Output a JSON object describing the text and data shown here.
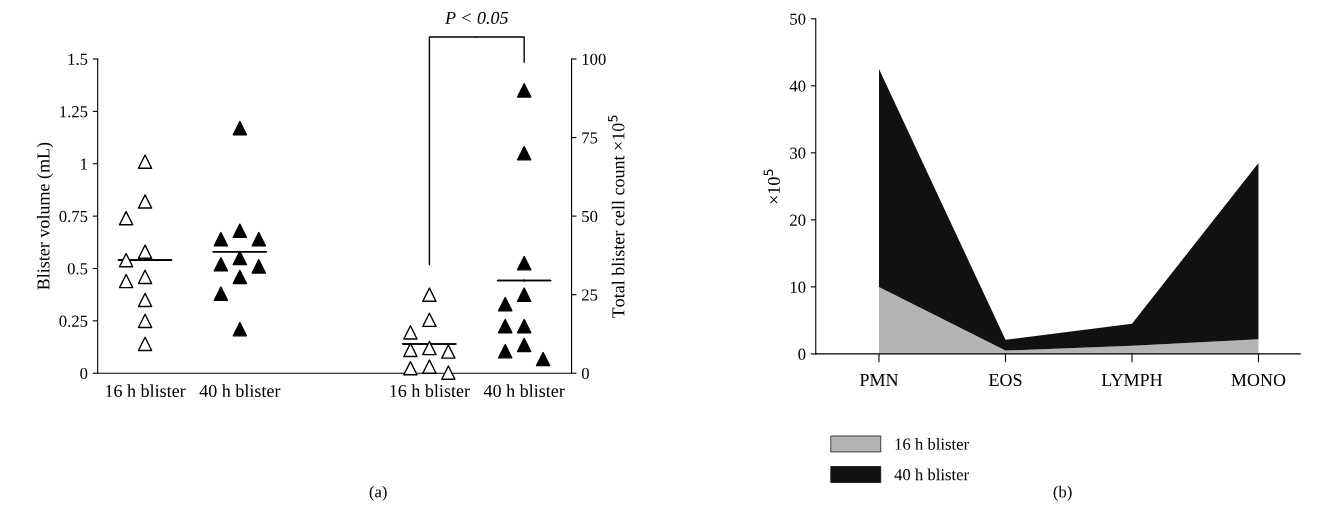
{
  "chart_data": [
    {
      "type": "scatter",
      "ylabel": "Blister volume (mL)",
      "y2label": "Total blister cell count ×10$^{5}$",
      "categories": [
        "16 h blister",
        "40 h blister",
        null,
        "16 h blister",
        "40 h blister"
      ],
      "ylim": [
        0,
        1.5
      ],
      "yticks": [
        0,
        0.25,
        0.5,
        0.75,
        1,
        1.25,
        1.5
      ],
      "y2lim": [
        0,
        100
      ],
      "y2ticks": [
        0,
        25,
        50,
        75,
        100
      ],
      "marker": "triangle",
      "series": [
        {
          "type": "scatter",
          "colors": [
            "#ffffff",
            "#000000",
            null,
            null,
            null
          ],
          "values": [
            1.01,
            1.17,
            null,
            null,
            null
          ]
        },
        {
          "type": "scatter",
          "colors": [
            "#ffffff",
            "#000000",
            null,
            null,
            null
          ],
          "values": [
            0.82,
            0.68,
            null,
            null,
            null
          ]
        },
        {
          "type": "scatter",
          "colors": [
            "#ffffff",
            "#000000",
            null,
            null,
            null
          ],
          "values": [
            0.74,
            0.64,
            null,
            null,
            null
          ]
        },
        {
          "type": "scatter",
          "colors": [
            "#ffffff",
            "#000000",
            null,
            null,
            null
          ],
          "values": [
            0.58,
            0.64,
            null,
            null,
            null
          ]
        },
        {
          "type": "scatter",
          "colors": [
            "#ffffff",
            "#000000",
            null,
            null,
            null
          ],
          "values": [
            0.54,
            0.55,
            null,
            null,
            null
          ]
        },
        {
          "type": "scatter",
          "colors": [
            "#ffffff",
            "#000000",
            null,
            null,
            null
          ],
          "values": [
            0.46,
            0.52,
            null,
            null,
            null
          ]
        },
        {
          "type": "scatter",
          "colors": [
            "#ffffff",
            "#000000",
            null,
            null,
            null
          ],
          "values": [
            0.44,
            0.51,
            null,
            null,
            null
          ]
        },
        {
          "type": "scatter",
          "colors": [
            "#ffffff",
            "#000000",
            null,
            null,
            null
          ],
          "values": [
            0.35,
            0.46,
            null,
            null,
            null
          ]
        },
        {
          "type": "scatter",
          "colors": [
            "#ffffff",
            "#000000",
            null,
            null,
            null
          ],
          "values": [
            0.25,
            0.38,
            null,
            null,
            null
          ]
        },
        {
          "type": "scatter",
          "colors": [
            "#ffffff",
            "#000000",
            null,
            null,
            null
          ],
          "values": [
            0.14,
            0.21,
            null,
            null,
            null
          ]
        },
        {
          "type": "scatter",
          "axis": "y2",
          "colors": [
            null,
            null,
            null,
            "#ffffff",
            "#000000"
          ],
          "values": [
            null,
            null,
            null,
            25,
            90
          ]
        },
        {
          "type": "scatter",
          "axis": "y2",
          "colors": [
            null,
            null,
            null,
            "#ffffff",
            "#000000"
          ],
          "values": [
            null,
            null,
            null,
            17,
            70
          ]
        },
        {
          "type": "scatter",
          "axis": "y2",
          "colors": [
            null,
            null,
            null,
            "#ffffff",
            "#000000"
          ],
          "values": [
            null,
            null,
            null,
            13,
            35
          ]
        },
        {
          "type": "scatter",
          "axis": "y2",
          "colors": [
            null,
            null,
            null,
            "#ffffff",
            "#000000"
          ],
          "values": [
            null,
            null,
            null,
            8,
            25
          ]
        },
        {
          "type": "scatter",
          "axis": "y2",
          "colors": [
            null,
            null,
            null,
            "#ffffff",
            "#000000"
          ],
          "values": [
            null,
            null,
            null,
            7.4,
            22
          ]
        },
        {
          "type": "scatter",
          "axis": "y2",
          "colors": [
            null,
            null,
            null,
            "#ffffff",
            "#000000"
          ],
          "values": [
            null,
            null,
            null,
            6.9,
            15
          ]
        },
        {
          "type": "scatter",
          "axis": "y2",
          "colors": [
            null,
            null,
            null,
            "#ffffff",
            "#000000"
          ],
          "values": [
            null,
            null,
            null,
            2.1,
            15
          ]
        },
        {
          "type": "scatter",
          "axis": "y2",
          "colors": [
            null,
            null,
            null,
            "#ffffff",
            "#000000"
          ],
          "values": [
            null,
            null,
            null,
            1.6,
            9
          ]
        },
        {
          "type": "scatter",
          "axis": "y2",
          "colors": [
            null,
            null,
            null,
            "#ffffff",
            "#000000"
          ],
          "values": [
            null,
            null,
            null,
            0.2,
            7
          ]
        },
        {
          "type": "scatter",
          "axis": "y2",
          "colors": [
            null,
            null,
            null,
            null,
            "#000000"
          ],
          "values": [
            null,
            null,
            null,
            null,
            4.5
          ]
        },
        {
          "type": "box",
          "color": "#000000",
          "boxes": [
            {
              "low": 0.54,
              "q1": 0.54,
              "median": 0.54,
              "q3": 0.54,
              "high": 0.54
            },
            {
              "low": 0.58,
              "q1": 0.58,
              "median": 0.58,
              "q3": 0.58,
              "high": 0.58
            },
            null,
            null,
            null
          ]
        },
        {
          "type": "box",
          "color": "#000000",
          "axis": "y2",
          "boxes": [
            null,
            null,
            null,
            {
              "low": 9.3,
              "q1": 9.3,
              "median": 9.3,
              "q3": 9.3,
              "high": 9.3
            },
            {
              "low": 29.5,
              "q1": 29.5,
              "median": 29.5,
              "q3": 29.5,
              "high": 29.5
            }
          ]
        }
      ],
      "annotations": [
        "P < 0.05",
        "(a)"
      ]
    },
    {
      "type": "area",
      "stacked": true,
      "ylabel": "×10$^{5}$",
      "categories": [
        "PMN",
        "EOS",
        "LYMPH",
        "MONO"
      ],
      "ylim": [
        0,
        50
      ],
      "yticks": [
        0,
        10,
        20,
        30,
        40,
        50
      ],
      "legend": "bottom left",
      "series": [
        {
          "name": "16 h blister",
          "color": "#b4b4b4",
          "values": [
            10,
            0.5,
            1.2,
            2.2
          ]
        },
        {
          "name": "40 h blister",
          "color": "#111111",
          "values": [
            32.5,
            1.6,
            3.3,
            26.3
          ]
        }
      ],
      "annotations": [
        "(b)"
      ]
    }
  ]
}
